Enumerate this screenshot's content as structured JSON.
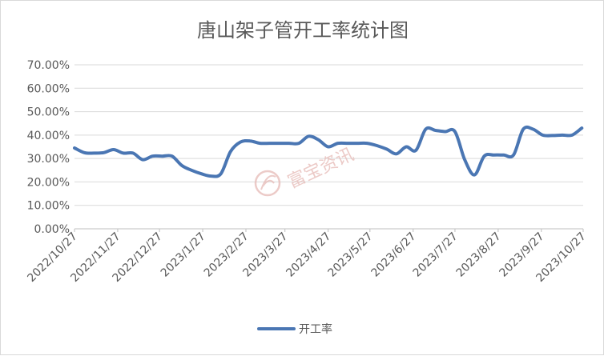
{
  "chart_data": {
    "type": "line",
    "title": "唐山架子管开工率统计图",
    "xlabel": "",
    "ylabel": "",
    "ylim": [
      0,
      0.7
    ],
    "y_ticks": [
      "0.00%",
      "10.00%",
      "20.00%",
      "30.00%",
      "40.00%",
      "50.00%",
      "60.00%",
      "70.00%"
    ],
    "x_ticks": [
      "2022/10/27",
      "2022/11/27",
      "2022/12/27",
      "2023/1/27",
      "2023/2/27",
      "2023/3/27",
      "2023/4/27",
      "2023/5/27",
      "2023/6/27",
      "2023/7/27",
      "2023/8/27",
      "2023/9/27",
      "2023/10/27"
    ],
    "grid": true,
    "legend_position": "bottom",
    "series": [
      {
        "name": "开工率",
        "color": "#4a76b3",
        "x": [
          "2022/10/27",
          "2022/11/3",
          "2022/11/10",
          "2022/11/17",
          "2022/11/24",
          "2022/12/1",
          "2022/12/8",
          "2022/12/15",
          "2022/12/22",
          "2022/12/29",
          "2023/1/5",
          "2023/1/12",
          "2023/1/19",
          "2023/1/26",
          "2023/2/2",
          "2023/2/9",
          "2023/2/16",
          "2023/2/23",
          "2023/3/2",
          "2023/3/9",
          "2023/3/16",
          "2023/3/23",
          "2023/3/30",
          "2023/4/6",
          "2023/4/13",
          "2023/4/20",
          "2023/4/27",
          "2023/5/4",
          "2023/5/11",
          "2023/5/18",
          "2023/5/25",
          "2023/6/1",
          "2023/6/8",
          "2023/6/15",
          "2023/6/22",
          "2023/6/29",
          "2023/7/6",
          "2023/7/13",
          "2023/7/20",
          "2023/7/27",
          "2023/8/3",
          "2023/8/10",
          "2023/8/17",
          "2023/8/24",
          "2023/8/31",
          "2023/9/7",
          "2023/9/14",
          "2023/9/21",
          "2023/9/28",
          "2023/10/5",
          "2023/10/12",
          "2023/10/19",
          "2023/10/26"
        ],
        "values": [
          0.345,
          0.325,
          0.323,
          0.325,
          0.338,
          0.323,
          0.323,
          0.295,
          0.31,
          0.31,
          0.31,
          0.27,
          0.25,
          0.235,
          0.225,
          0.235,
          0.33,
          0.37,
          0.375,
          0.365,
          0.365,
          0.365,
          0.365,
          0.365,
          0.395,
          0.38,
          0.35,
          0.365,
          0.365,
          0.365,
          0.365,
          0.355,
          0.34,
          0.32,
          0.35,
          0.335,
          0.425,
          0.42,
          0.415,
          0.415,
          0.295,
          0.23,
          0.31,
          0.315,
          0.315,
          0.315,
          0.425,
          0.425,
          0.4,
          0.398,
          0.4,
          0.4,
          0.43
        ]
      }
    ]
  },
  "watermark": {
    "text": "富宝资讯"
  }
}
